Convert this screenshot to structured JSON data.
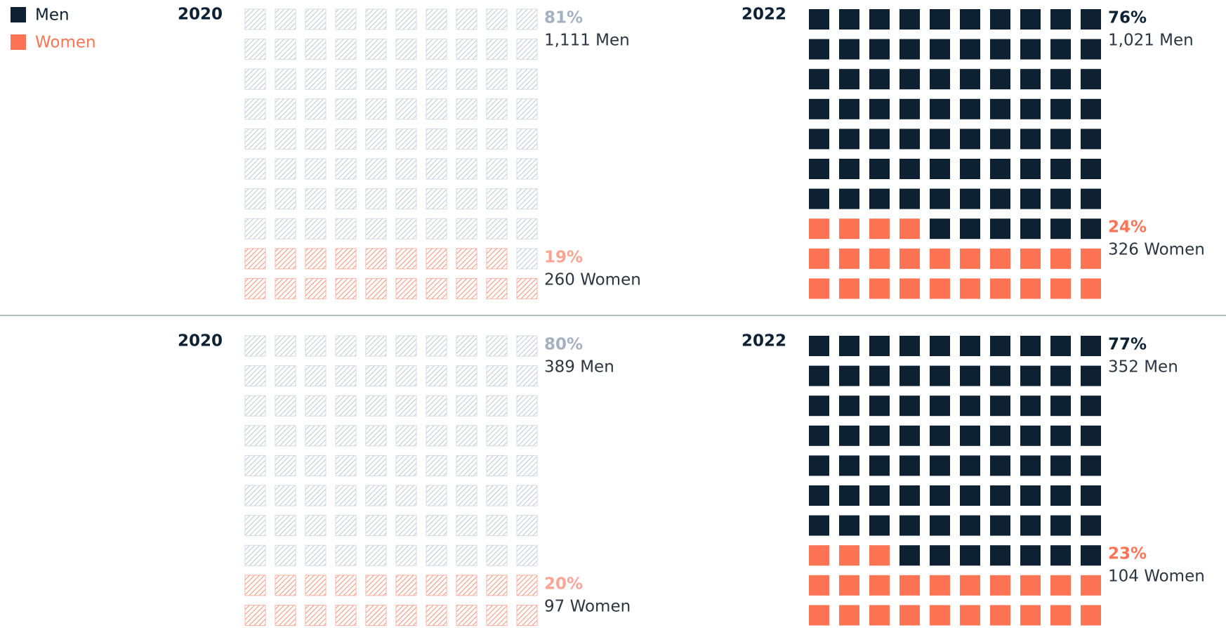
{
  "legend": [
    {
      "name": "Men",
      "color": "#0d2133"
    },
    {
      "name": "Women",
      "color": "#ff7355"
    }
  ],
  "chart_data": [
    {
      "type": "waffle",
      "year": "2020",
      "hatched": true,
      "categories": [
        "Men",
        "Women"
      ],
      "values": [
        81,
        19
      ],
      "value_labels": [
        "81%",
        "19%"
      ],
      "counts": [
        1111,
        260
      ],
      "count_labels": [
        "1,111 Men",
        "260 Women"
      ]
    },
    {
      "type": "waffle",
      "year": "2022",
      "hatched": false,
      "categories": [
        "Men",
        "Women"
      ],
      "values": [
        76,
        24
      ],
      "value_labels": [
        "76%",
        "24%"
      ],
      "counts": [
        1021,
        326
      ],
      "count_labels": [
        "1,021 Men",
        "326 Women"
      ]
    },
    {
      "type": "waffle",
      "year": "2020",
      "hatched": true,
      "categories": [
        "Men",
        "Women"
      ],
      "values": [
        80,
        20
      ],
      "value_labels": [
        "80%",
        "20%"
      ],
      "counts": [
        389,
        97
      ],
      "count_labels": [
        "389 Men",
        "97 Women"
      ]
    },
    {
      "type": "waffle",
      "year": "2022",
      "hatched": false,
      "categories": [
        "Men",
        "Women"
      ],
      "values": [
        77,
        23
      ],
      "value_labels": [
        "77%",
        "23%"
      ],
      "counts": [
        352,
        104
      ],
      "count_labels": [
        "352 Men",
        "104 Women"
      ]
    }
  ]
}
